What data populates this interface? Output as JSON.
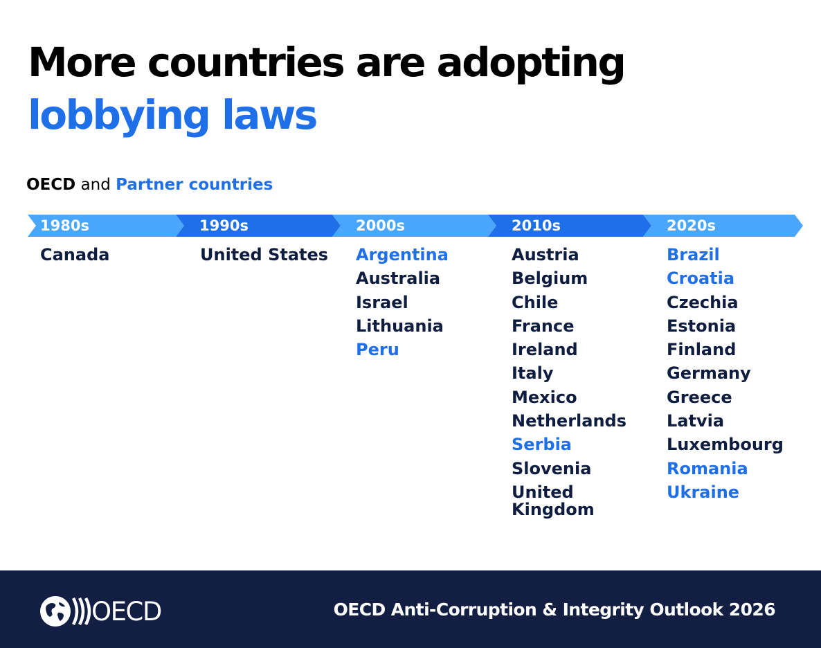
{
  "title": {
    "line1": "More countries are adopting",
    "line2": "lobbying laws",
    "line2_color": "#1f6fe8"
  },
  "subtitle": {
    "oecd": "OECD",
    "and": "and",
    "partner": "Partner countries"
  },
  "colors": {
    "oecd_text": "#0e1d3f",
    "partner_text": "#1f6fe8",
    "timeline_light": "#4aa6fb",
    "timeline_dark": "#1f6fe8",
    "footer_bg": "#121f42"
  },
  "timeline": [
    {
      "label": "1980s",
      "countries": [
        {
          "name": "Canada",
          "group": "oecd"
        }
      ]
    },
    {
      "label": "1990s",
      "countries": [
        {
          "name": "United States",
          "group": "oecd"
        }
      ]
    },
    {
      "label": "2000s",
      "countries": [
        {
          "name": "Argentina",
          "group": "partner"
        },
        {
          "name": "Australia",
          "group": "oecd"
        },
        {
          "name": "Israel",
          "group": "oecd"
        },
        {
          "name": "Lithuania",
          "group": "oecd"
        },
        {
          "name": "Peru",
          "group": "partner"
        }
      ]
    },
    {
      "label": "2010s",
      "countries": [
        {
          "name": "Austria",
          "group": "oecd"
        },
        {
          "name": "Belgium",
          "group": "oecd"
        },
        {
          "name": "Chile",
          "group": "oecd"
        },
        {
          "name": "France",
          "group": "oecd"
        },
        {
          "name": "Ireland",
          "group": "oecd"
        },
        {
          "name": "Italy",
          "group": "oecd"
        },
        {
          "name": "Mexico",
          "group": "oecd"
        },
        {
          "name": "Netherlands",
          "group": "oecd"
        },
        {
          "name": "Serbia",
          "group": "partner"
        },
        {
          "name": "Slovenia",
          "group": "oecd"
        },
        {
          "name": "United Kingdom",
          "group": "oecd"
        }
      ]
    },
    {
      "label": "2020s",
      "countries": [
        {
          "name": "Brazil",
          "group": "partner"
        },
        {
          "name": "Croatia",
          "group": "partner"
        },
        {
          "name": "Czechia",
          "group": "oecd"
        },
        {
          "name": "Estonia",
          "group": "oecd"
        },
        {
          "name": "Finland",
          "group": "oecd"
        },
        {
          "name": "Germany",
          "group": "oecd"
        },
        {
          "name": "Greece",
          "group": "oecd"
        },
        {
          "name": "Latvia",
          "group": "oecd"
        },
        {
          "name": "Luxembourg",
          "group": "oecd"
        },
        {
          "name": "Romania",
          "group": "partner"
        },
        {
          "name": "Ukraine",
          "group": "partner"
        }
      ]
    }
  ],
  "footer": {
    "logo_icon": "oecd-globe-logo-icon",
    "logo_text": "OECD",
    "publication": "OECD Anti-Corruption & Integrity Outlook 2026"
  }
}
